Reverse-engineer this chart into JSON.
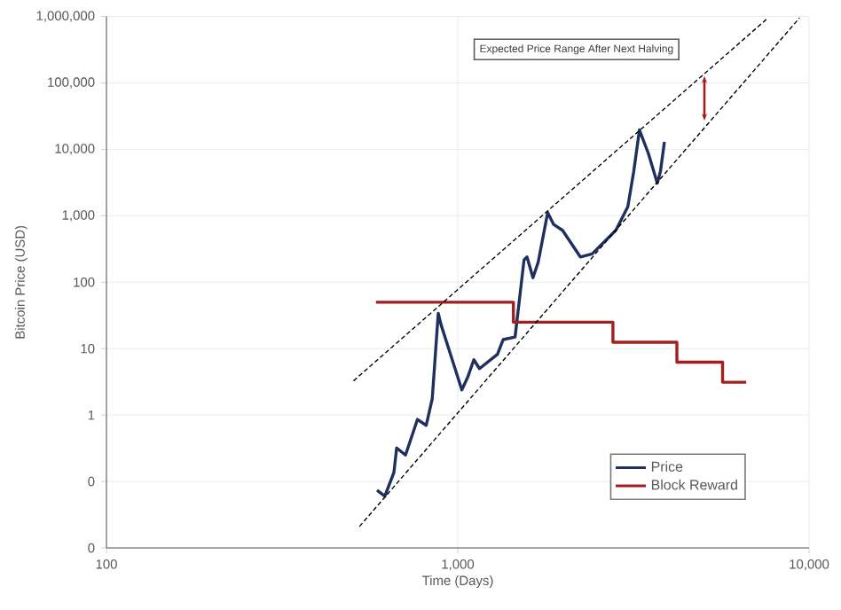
{
  "chart_data": {
    "type": "line",
    "xlabel": "Time (Days)",
    "ylabel": "Bitcoin Price (USD)",
    "annotations": [
      "Expected Price Range After Next Halving"
    ],
    "log": "xy",
    "grid": true,
    "legend": "bottom right",
    "xlim": [
      100,
      10000
    ],
    "ylim": [
      0.01,
      1000000
    ],
    "xticks": [
      {
        "value": 100,
        "label": "100"
      },
      {
        "value": 1000,
        "label": "1,000"
      },
      {
        "value": 10000,
        "label": "10,000"
      }
    ],
    "yticks": [
      {
        "value": 0.01,
        "label": "0"
      },
      {
        "value": 0.1,
        "label": "0"
      },
      {
        "value": 1,
        "label": "1"
      },
      {
        "value": 10,
        "label": "10"
      },
      {
        "value": 100,
        "label": "100"
      },
      {
        "value": 1000,
        "label": "1,000"
      },
      {
        "value": 10000,
        "label": "10,000"
      },
      {
        "value": 100000,
        "label": "100,000"
      },
      {
        "value": 1000000,
        "label": "1,000,000"
      }
    ],
    "series": [
      {
        "name": "Price",
        "color": "#1f2f5e",
        "x": [
          589,
          620,
          658,
          670,
          710,
          768,
          813,
          846,
          880,
          896,
          1027,
          1067,
          1111,
          1153,
          1297,
          1347,
          1456,
          1544,
          1574,
          1637,
          1694,
          1803,
          1875,
          1987,
          2233,
          2412,
          2818,
          3048,
          3169,
          3290,
          3489,
          3698,
          3776,
          3875
        ],
        "values": [
          0.074,
          0.06,
          0.137,
          0.32,
          0.25,
          0.86,
          0.7,
          1.77,
          34,
          23,
          2.4,
          3.7,
          6.8,
          5.0,
          8.2,
          13.7,
          15,
          217,
          240,
          117,
          200,
          1117,
          740,
          604,
          240,
          267,
          604,
          1368,
          4670,
          19600,
          8630,
          3110,
          4670,
          13000
        ]
      },
      {
        "name": "Block Reward",
        "color": "#a31f1f",
        "type": "step",
        "x": [
          585,
          1440,
          2765,
          4205,
          5673,
          6622
        ],
        "values": [
          50,
          25,
          12.5,
          6.25,
          3.125,
          3.125
        ]
      },
      {
        "color": "#000000",
        "line_style": "dashed",
        "x": [
          505,
          7640
        ],
        "values": [
          3.27,
          950000
        ]
      },
      {
        "color": "#000000",
        "line_style": "dashed",
        "x": [
          525,
          9390
        ],
        "values": [
          0.021,
          950000
        ]
      }
    ]
  }
}
